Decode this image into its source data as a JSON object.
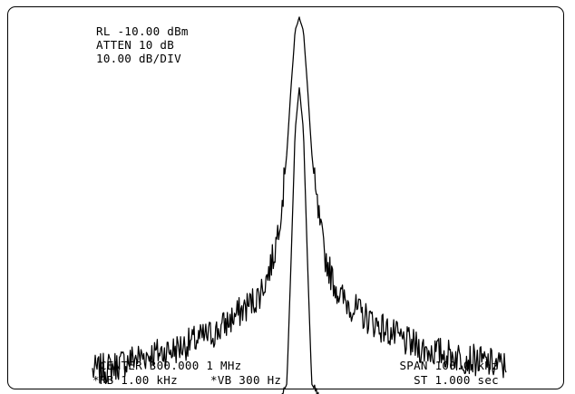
{
  "annotations": {
    "reference_level": "RL -10.00 dBm",
    "attenuation": "ATTEN 10 dB",
    "scale": "10.00 dB/DIV",
    "center": "CENTER 300.000 1 MHz",
    "resolution_bw": "*RB 1.00 kHz",
    "video_bw": "*VB 300 Hz",
    "span": "SPAN 100.0 kHz",
    "sweep_time": "ST 1.000 sec"
  },
  "chart_data": {
    "type": "line",
    "title": "",
    "xlabel": "",
    "ylabel": "",
    "x_unit": "kHz offset from center",
    "xlim": [
      -50,
      50
    ],
    "y_unit": "dBm",
    "ylim": [
      -110,
      -10
    ],
    "grid": false,
    "series": [
      {
        "x": [
          -50,
          -45,
          -40,
          -35,
          -30,
          -25,
          -20,
          -15,
          -10,
          -8,
          -6,
          -4,
          -3,
          -2,
          -1,
          0,
          1,
          2,
          3,
          4,
          6,
          8,
          10,
          15,
          20,
          25,
          30,
          35,
          40,
          45,
          50
        ],
        "values": [
          -95,
          -94,
          -92,
          -91,
          -90,
          -88,
          -86,
          -82,
          -78,
          -74,
          -68,
          -55,
          -45,
          -30,
          -17,
          -14,
          -17,
          -30,
          -45,
          -55,
          -68,
          -74,
          -78,
          -82,
          -85,
          -88,
          -90,
          -91,
          -92,
          -93,
          -94
        ]
      },
      {
        "x": [
          -50,
          -40,
          -30,
          -20,
          -10,
          -5,
          -3,
          -2,
          -1,
          0,
          1,
          2,
          3,
          5,
          10,
          20,
          30,
          40,
          50
        ],
        "values": [
          -103,
          -103,
          -103,
          -103,
          -103,
          -102,
          -98,
          -70,
          -40,
          -30,
          -40,
          -70,
          -98,
          -102,
          -103,
          -103,
          -103,
          -103,
          -103
        ]
      }
    ]
  }
}
